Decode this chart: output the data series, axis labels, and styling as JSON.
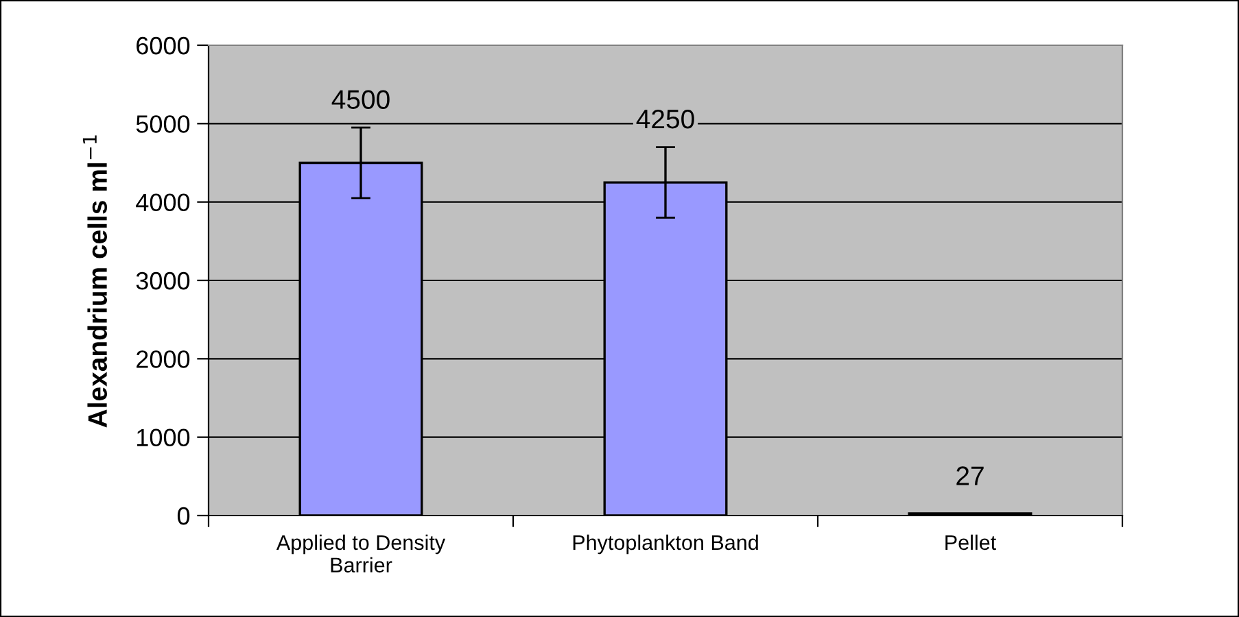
{
  "chart_data": {
    "type": "bar",
    "ylabel": "Alexandrium cells ml$^{−1}$",
    "categories": [
      "Applied to Density\nBarrier",
      "Phytoplankton Band",
      "Pellet"
    ],
    "values": [
      4500,
      4250,
      27
    ],
    "errors": [
      450,
      450,
      null
    ],
    "color": "#9999ff",
    "ylim": [
      0,
      6000
    ],
    "yticks": [
      0,
      1000,
      2000,
      3000,
      4000,
      5000,
      6000
    ],
    "grid": "y",
    "data_labels": true
  }
}
